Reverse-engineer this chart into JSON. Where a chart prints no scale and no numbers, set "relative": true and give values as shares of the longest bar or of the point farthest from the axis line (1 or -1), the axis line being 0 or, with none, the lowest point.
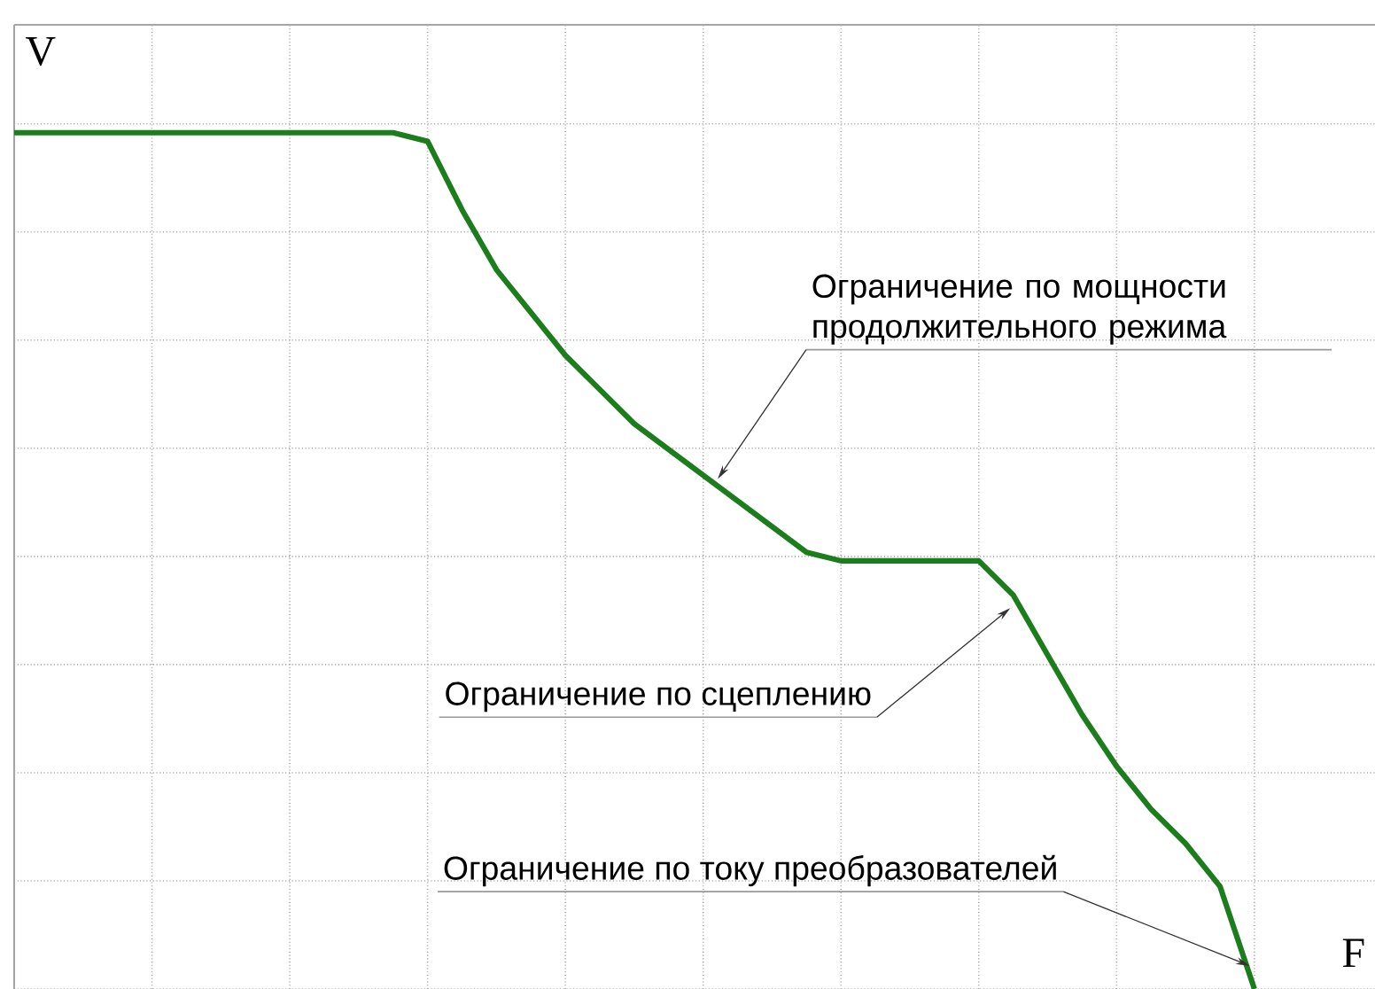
{
  "chart_data": {
    "type": "line",
    "xlabel": "F",
    "ylabel": "V",
    "relative": true,
    "grid": true,
    "line_style": "solid",
    "categories": [
      null,
      null,
      null,
      null,
      null,
      null,
      null,
      null,
      null,
      null,
      null,
      null,
      null,
      null,
      null,
      null,
      null,
      null,
      null,
      null,
      null,
      null,
      null,
      null,
      null,
      null,
      null,
      null,
      null,
      null,
      null,
      null,
      null,
      null,
      null,
      null,
      null
    ],
    "series": [
      {
        "color": "#1b7d1b",
        "values": [
          1,
          1,
          1,
          1,
          1,
          1,
          1,
          1,
          1,
          1,
          1,
          1,
          0.99,
          0.91,
          0.84,
          0.79,
          0.74,
          0.7,
          0.66,
          0.63,
          0.6,
          0.57,
          0.54,
          0.51,
          0.5,
          0.5,
          0.5,
          0.5,
          0.5,
          0.46,
          0.39,
          0.32,
          0.26,
          0.21,
          0.17,
          0.12,
          0
        ]
      }
    ],
    "annotations": [
      "Ограничение по мощности продолжительного режима",
      "Ограничение по сцеплению",
      "Ограничение по току преобразователей"
    ]
  }
}
